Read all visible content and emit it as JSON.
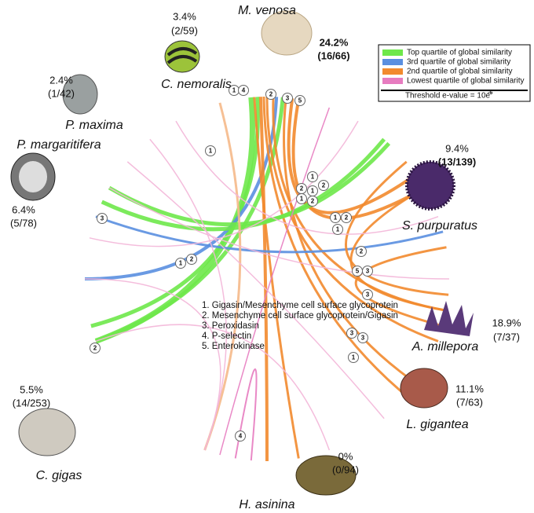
{
  "species": [
    {
      "name": "M. venosa",
      "percent": "24.2%",
      "fraction": "(16/66)"
    },
    {
      "name": "C. nemoralis",
      "percent": "3.4%",
      "fraction": "(2/59)"
    },
    {
      "name": "P. maxima",
      "percent": "2.4%",
      "fraction": "(1/42)"
    },
    {
      "name": "P. margaritifera",
      "percent": "6.4%",
      "fraction": "(5/78)"
    },
    {
      "name": "S. purpuratus",
      "percent": "9.4%",
      "fraction": "(13/139)"
    },
    {
      "name": "A. millepora",
      "percent": "18.9%",
      "fraction": "(7/37)"
    },
    {
      "name": "L. gigantea",
      "percent": "11.1%",
      "fraction": "(7/63)"
    },
    {
      "name": "H. asinina",
      "percent": "0%",
      "fraction": "(0/94)"
    },
    {
      "name": "C. gigas",
      "percent": "5.5%",
      "fraction": "(14/253)"
    }
  ],
  "legend": {
    "items": [
      {
        "label": "Top quartile of global similarity",
        "color": "#6ee84a"
      },
      {
        "label": "3rd quartile of global similarity",
        "color": "#5a8fe0"
      },
      {
        "label": "2nd quartile of global similarity",
        "color": "#f28a2e"
      },
      {
        "label": "Lowest quartile of global similarity",
        "color": "#e77cc0"
      }
    ],
    "threshold": "Threshold e-value = 10e",
    "threshold_exp": "-6"
  },
  "proteins": [
    "1. Gigasin/Mesenchyme cell surface glycoprotein",
    "2. Mesenchyme cell surface glycoprotein/Gigasin",
    "3. Peroxidasin",
    "4. P-selectin",
    "5. Enterokinase"
  ],
  "link_badges": [
    "1",
    "4",
    "2",
    "3",
    "5",
    "1",
    "1",
    "2",
    "1",
    "2",
    "1",
    "2",
    "1",
    "2",
    "1",
    "3",
    "2",
    "1",
    "2",
    "5",
    "3",
    "3",
    "3",
    "3",
    "1",
    "2",
    "4"
  ]
}
